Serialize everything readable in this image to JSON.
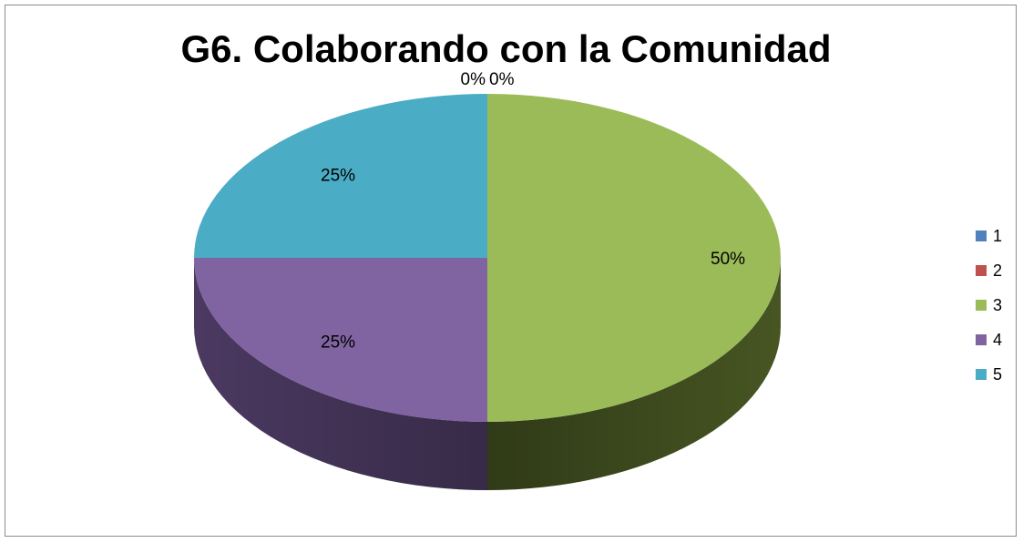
{
  "chart_data": {
    "type": "pie",
    "title": "G6. Colaborando con la Comunidad",
    "three_d": true,
    "legend_position": "right",
    "categories": [
      "1",
      "2",
      "3",
      "4",
      "5"
    ],
    "values": [
      0,
      0,
      50,
      25,
      25
    ],
    "labels": [
      "0%",
      "0%",
      "50%",
      "25%",
      "25%"
    ],
    "colors": [
      "#4f81bd",
      "#c0504d",
      "#9bbb59",
      "#8064a2",
      "#4bacc6"
    ],
    "side_colors": [
      "#2c4a6e",
      "#6e2c2a",
      "#4a5a24",
      "#4f3c66",
      "#2c6878"
    ]
  }
}
